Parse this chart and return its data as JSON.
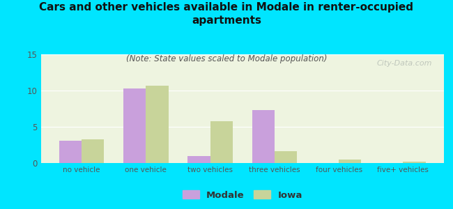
{
  "categories": [
    "no vehicle",
    "one vehicle",
    "two vehicles",
    "three vehicles",
    "four vehicles",
    "five+ vehicles"
  ],
  "modale_values": [
    3.1,
    10.3,
    1.0,
    7.3,
    0.0,
    0.0
  ],
  "iowa_values": [
    3.3,
    10.7,
    5.8,
    1.6,
    0.5,
    0.2
  ],
  "modale_color": "#c9a0dc",
  "iowa_color": "#c8d49a",
  "title": "Cars and other vehicles available in Modale in renter-occupied\napartments",
  "subtitle": "(Note: State values scaled to Modale population)",
  "ylim": [
    0,
    15
  ],
  "yticks": [
    0,
    5,
    10,
    15
  ],
  "background_color": "#00e5ff",
  "plot_bg_color": "#e8f0d8",
  "watermark": "City-Data.com",
  "legend_modale": "Modale",
  "legend_iowa": "Iowa",
  "title_fontsize": 11,
  "subtitle_fontsize": 8.5,
  "bar_width": 0.35
}
